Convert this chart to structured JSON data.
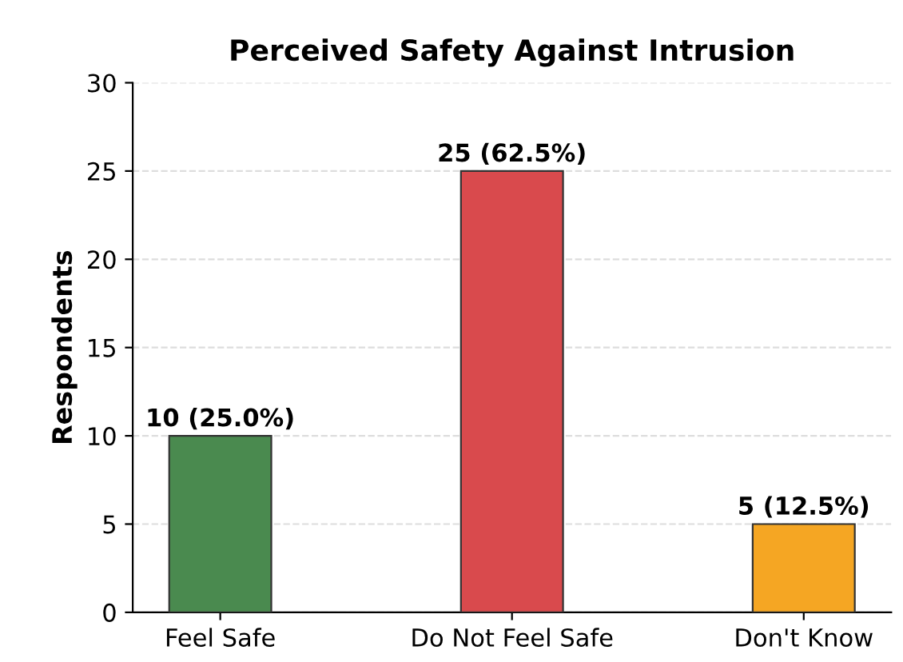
{
  "chart_data": {
    "type": "bar",
    "title": "Perceived Safety Against Intrusion",
    "ylabel": "Respondents",
    "categories": [
      "Feel Safe",
      "Do Not Feel Safe",
      "Don't Know"
    ],
    "values": [
      10,
      25,
      5
    ],
    "colors": [
      "#4a8a4f",
      "#d94a4d",
      "#f5a623"
    ],
    "value_labels": [
      "10 (25.0%)",
      "25 (62.5%)",
      "5 (12.5%)"
    ],
    "ylim": [
      0,
      30
    ],
    "yticks": [
      0,
      5,
      10,
      15,
      20,
      25,
      30
    ],
    "grid": "y"
  }
}
